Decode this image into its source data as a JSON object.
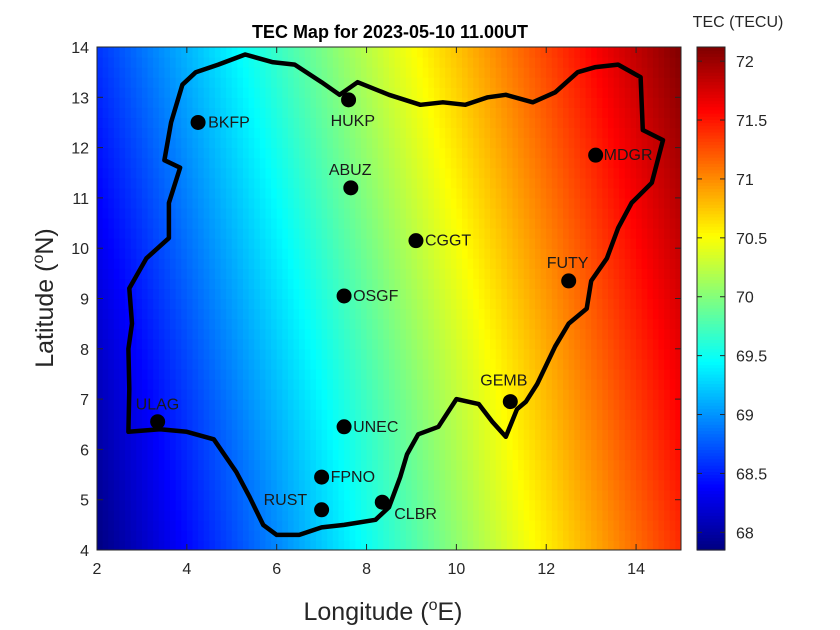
{
  "title": "TEC Map for 2023-05-10      11.00UT",
  "xlabel_text": "Longitude (",
  "xlabel_sup": "o",
  "xlabel_unit": "E)",
  "ylabel_text": "Latitude (",
  "ylabel_sup": "o",
  "ylabel_unit": "N)",
  "colorbar_title": "TEC (TECU)",
  "colormap": "jet",
  "chart_data": {
    "type": "heatmap",
    "title": "TEC Map for 2023-05-10      11.00UT",
    "xlabel": "Longitude (oE)",
    "ylabel": "Latitude (oN)",
    "xlim": [
      2,
      15
    ],
    "ylim": [
      4,
      14
    ],
    "xticks": [
      2,
      4,
      6,
      8,
      10,
      12,
      14
    ],
    "yticks": [
      4,
      5,
      6,
      7,
      8,
      9,
      10,
      11,
      12,
      13,
      14
    ],
    "xtick_labels": [
      "2",
      "4",
      "6",
      "8",
      "10",
      "12",
      "14"
    ],
    "ytick_labels": [
      "4",
      "5",
      "6",
      "7",
      "8",
      "9",
      "10",
      "11",
      "12",
      "13",
      "14"
    ],
    "clim": [
      67.85,
      72.12
    ],
    "colorbar_ticks": [
      68,
      68.5,
      69,
      69.5,
      70,
      70.5,
      71,
      71.5,
      72
    ],
    "colorbar_tick_labels": [
      "68",
      "68.5",
      "69",
      "69.5",
      "70",
      "70.5",
      "71",
      "71.5",
      "72"
    ],
    "field_gradient": {
      "corner_values": {
        "lon2_lat4": 67.85,
        "lon15_lat4": 71.4,
        "lon2_lat14": 68.6,
        "lon15_lat14": 72.12
      }
    },
    "grid": false,
    "stations": [
      {
        "name": "BKFP",
        "lon": 4.25,
        "lat": 12.5
      },
      {
        "name": "HUKP",
        "lon": 7.6,
        "lat": 12.95
      },
      {
        "name": "ABUZ",
        "lon": 7.65,
        "lat": 11.2
      },
      {
        "name": "MDGR",
        "lon": 13.1,
        "lat": 11.85
      },
      {
        "name": "CGGT",
        "lon": 9.1,
        "lat": 10.15
      },
      {
        "name": "FUTY",
        "lon": 12.5,
        "lat": 9.35
      },
      {
        "name": "OSGF",
        "lon": 7.5,
        "lat": 9.05
      },
      {
        "name": "GEMB",
        "lon": 11.2,
        "lat": 6.95
      },
      {
        "name": "ULAG",
        "lon": 3.35,
        "lat": 6.55
      },
      {
        "name": "UNEC",
        "lon": 7.5,
        "lat": 6.45
      },
      {
        "name": "FPNO",
        "lon": 7.0,
        "lat": 5.45
      },
      {
        "name": "RUST",
        "lon": 7.0,
        "lat": 4.8
      },
      {
        "name": "CLBR",
        "lon": 8.35,
        "lat": 4.95
      }
    ],
    "boundary": [
      [
        2.7,
        6.35
      ],
      [
        2.72,
        7.2
      ],
      [
        2.7,
        8.0
      ],
      [
        2.78,
        8.5
      ],
      [
        2.72,
        9.2
      ],
      [
        3.1,
        9.8
      ],
      [
        3.6,
        10.2
      ],
      [
        3.6,
        10.9
      ],
      [
        3.85,
        11.6
      ],
      [
        3.5,
        11.75
      ],
      [
        3.65,
        12.5
      ],
      [
        3.9,
        13.25
      ],
      [
        4.2,
        13.5
      ],
      [
        4.7,
        13.65
      ],
      [
        5.3,
        13.85
      ],
      [
        5.9,
        13.7
      ],
      [
        6.4,
        13.65
      ],
      [
        7.0,
        13.3
      ],
      [
        7.4,
        13.05
      ],
      [
        7.8,
        13.3
      ],
      [
        8.5,
        13.05
      ],
      [
        9.2,
        12.85
      ],
      [
        9.7,
        12.9
      ],
      [
        10.2,
        12.85
      ],
      [
        10.7,
        13.0
      ],
      [
        11.1,
        13.05
      ],
      [
        11.7,
        12.9
      ],
      [
        12.2,
        13.1
      ],
      [
        12.7,
        13.5
      ],
      [
        13.1,
        13.6
      ],
      [
        13.6,
        13.65
      ],
      [
        14.1,
        13.4
      ],
      [
        14.15,
        12.35
      ],
      [
        14.6,
        12.15
      ],
      [
        14.35,
        11.3
      ],
      [
        13.9,
        10.9
      ],
      [
        13.6,
        10.4
      ],
      [
        13.35,
        9.8
      ],
      [
        13.0,
        9.35
      ],
      [
        12.9,
        8.8
      ],
      [
        12.5,
        8.5
      ],
      [
        12.2,
        8.05
      ],
      [
        11.8,
        7.3
      ],
      [
        11.55,
        6.95
      ],
      [
        11.35,
        6.8
      ],
      [
        11.1,
        6.25
      ],
      [
        10.8,
        6.55
      ],
      [
        10.5,
        6.9
      ],
      [
        10.0,
        7.0
      ],
      [
        9.6,
        6.45
      ],
      [
        9.15,
        6.3
      ],
      [
        8.9,
        5.9
      ],
      [
        8.75,
        5.45
      ],
      [
        8.5,
        4.85
      ],
      [
        8.2,
        4.6
      ],
      [
        7.5,
        4.5
      ],
      [
        7.0,
        4.45
      ],
      [
        6.5,
        4.3
      ],
      [
        6.0,
        4.3
      ],
      [
        5.7,
        4.5
      ],
      [
        5.4,
        5.05
      ],
      [
        5.1,
        5.55
      ],
      [
        4.6,
        6.2
      ],
      [
        4.0,
        6.35
      ],
      [
        3.4,
        6.4
      ],
      [
        2.7,
        6.35
      ]
    ]
  }
}
